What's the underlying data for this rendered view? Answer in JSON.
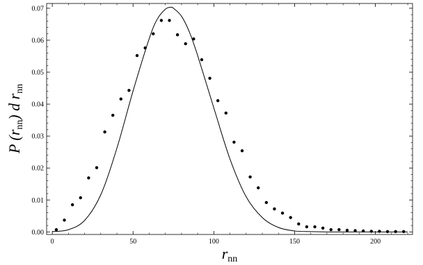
{
  "chart_data": {
    "type": "scatter",
    "title": "",
    "xlabel": {
      "main": "r",
      "sub": "nn"
    },
    "ylabel": {
      "p1": "P (r",
      "sub1": "nn",
      "p2": ") d r",
      "sub2": "nn"
    },
    "xlim": [
      -3.5,
      223
    ],
    "ylim": [
      -0.0008,
      0.0715
    ],
    "x_ticks": [
      0,
      50,
      100,
      150,
      200
    ],
    "x_tick_labels": [
      "0",
      "50",
      "100",
      "150",
      "200"
    ],
    "y_ticks": [
      0,
      0.01,
      0.02,
      0.03,
      0.04,
      0.05,
      0.06,
      0.07
    ],
    "y_tick_labels": [
      "0.00",
      "0.01",
      "0.02",
      "0.03",
      "0.04",
      "0.05",
      "0.06",
      "0.07"
    ],
    "grid": false,
    "series": [
      {
        "kind": "points",
        "color": "#000000",
        "x": [
          2.5,
          7.5,
          12.5,
          17.5,
          22.5,
          27.5,
          32.5,
          37.5,
          42.5,
          47.5,
          52.5,
          57.5,
          62.5,
          67.5,
          72.5,
          77.5,
          82.5,
          87.5,
          92.5,
          97.5,
          102.5,
          107.5,
          112.5,
          117.5,
          122.5,
          127.5,
          132.5,
          137.5,
          142.5,
          147.5,
          152.5,
          157.5,
          162.5,
          167.5,
          172.5,
          177.5,
          182.5,
          187.5,
          192.5,
          197.5,
          202.5,
          207.5,
          212.5,
          217.5
        ],
        "y": [
          0.0007,
          0.0037,
          0.0085,
          0.0107,
          0.0169,
          0.0201,
          0.0313,
          0.0365,
          0.0416,
          0.0443,
          0.0552,
          0.0576,
          0.062,
          0.0662,
          0.0662,
          0.0617,
          0.0589,
          0.0604,
          0.0539,
          0.0481,
          0.0411,
          0.0372,
          0.0281,
          0.0254,
          0.0172,
          0.0138,
          0.0092,
          0.0072,
          0.0059,
          0.0045,
          0.0025,
          0.0016,
          0.0016,
          0.0012,
          0.0007,
          0.0007,
          0.0005,
          0.0004,
          0.0003,
          0.0002,
          0.0002,
          0.0001,
          0.0001,
          0.0001
        ]
      },
      {
        "kind": "curve",
        "color": "#000000",
        "x": [
          0,
          10,
          20,
          30,
          40,
          50,
          60,
          65,
          70,
          73,
          75,
          80,
          85,
          90,
          100,
          110,
          120,
          130,
          140,
          150,
          160,
          170,
          180,
          190,
          200,
          210,
          220
        ],
        "y": [
          0.0001,
          0.0007,
          0.0036,
          0.0116,
          0.0262,
          0.0441,
          0.0605,
          0.0666,
          0.0697,
          0.0703,
          0.07,
          0.0675,
          0.0624,
          0.0552,
          0.0388,
          0.0228,
          0.011,
          0.0045,
          0.0014,
          0.0003,
          0.0001,
          0.0,
          0.0,
          0.0,
          0.0,
          0.0,
          0.0
        ]
      }
    ]
  }
}
